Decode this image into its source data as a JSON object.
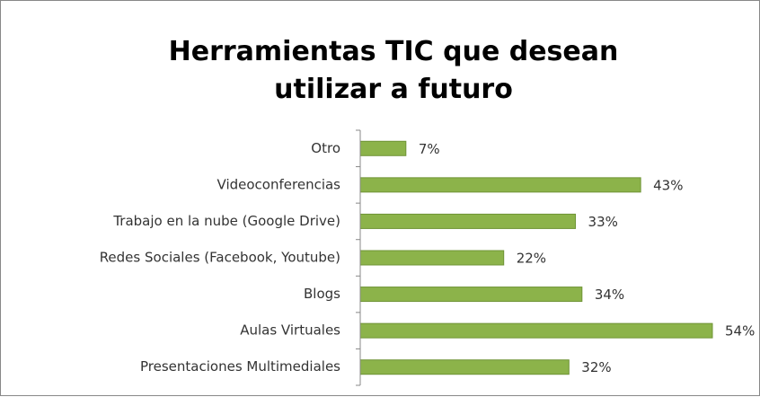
{
  "chart_data": {
    "type": "bar",
    "orientation": "horizontal",
    "title": "Herramientas TIC que desean utilizar a futuro",
    "categories": [
      "Otro",
      "Videoconferencias",
      "Trabajo en la nube (Google Drive)",
      "Redes Sociales (Facebook, Youtube)",
      "Blogs",
      "Aulas Virtuales",
      "Presentaciones Multimediales"
    ],
    "values": [
      7,
      43,
      33,
      22,
      34,
      54,
      32
    ],
    "value_labels": [
      "7%",
      "43%",
      "33%",
      "22%",
      "34%",
      "54%",
      "32%"
    ],
    "color": "#8cb34a"
  }
}
